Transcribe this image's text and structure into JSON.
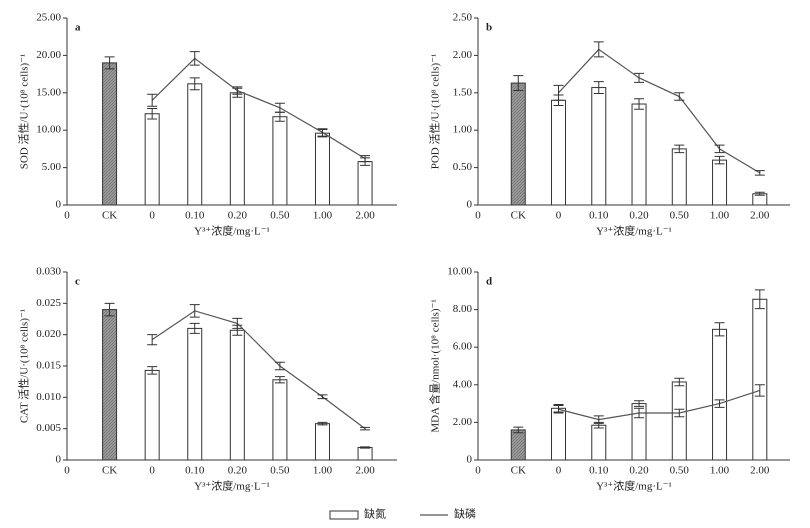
{
  "legend": [
    {
      "name": "缺氮",
      "kind": "bar",
      "color": "#ffffff"
    },
    {
      "name": "缺磷",
      "kind": "line",
      "color": "#555555"
    }
  ],
  "chart_data": [
    {
      "type": "bar",
      "title": "a",
      "xlabel": "Y³⁺浓度/mg·L⁻¹",
      "ylabel": "SOD 活性/U·(10⁸ cells)⁻¹",
      "categories": [
        "0",
        "CK",
        "0",
        "0.10",
        "0.20",
        "0.50",
        "1.00",
        "2.00"
      ],
      "ylim": [
        0,
        25
      ],
      "yticks": [
        0,
        {
          "value": 5,
          "label": "5.00"
        },
        {
          "value": 10,
          "label": "10.00"
        },
        {
          "value": 15,
          "label": "15.00"
        },
        {
          "value": 20,
          "label": "20.00"
        },
        {
          "value": 25,
          "label": "25.00"
        }
      ],
      "series": [
        {
          "kind": "bar",
          "color": "#9a9a9a",
          "values": [
            null,
            19.0,
            null,
            null,
            null,
            null,
            null,
            null
          ],
          "errors": [
            null,
            0.8,
            null,
            null,
            null,
            null,
            null,
            null
          ]
        },
        {
          "kind": "bar",
          "color": "#ffffff",
          "values": [
            null,
            null,
            12.2,
            16.2,
            15.0,
            11.8,
            9.6,
            5.8
          ],
          "errors": [
            null,
            null,
            0.7,
            0.8,
            0.6,
            0.6,
            0.5,
            0.5
          ]
        },
        {
          "kind": "line",
          "color": "#555555",
          "values": [
            null,
            null,
            14.0,
            19.6,
            15.3,
            13.0,
            9.7,
            6.2
          ],
          "errors": [
            null,
            null,
            0.8,
            0.9,
            0.5,
            0.6,
            0.5,
            0.4
          ]
        }
      ]
    },
    {
      "type": "bar",
      "title": "b",
      "xlabel": "Y³⁺浓度/mg·L⁻¹",
      "ylabel": "POD 活性/U·(10⁸ cells)⁻¹",
      "categories": [
        "0",
        "CK",
        "0",
        "0.10",
        "0.20",
        "0.50",
        "1.00",
        "2.00"
      ],
      "ylim": [
        0,
        2.5
      ],
      "yticks": [
        0,
        {
          "value": 0.5,
          "label": "0.50"
        },
        {
          "value": 1,
          "label": "1.00"
        },
        {
          "value": 1.5,
          "label": "1.50"
        },
        {
          "value": 2,
          "label": "2.00"
        },
        {
          "value": 2.5,
          "label": "2.50"
        }
      ],
      "series": [
        {
          "kind": "bar",
          "color": "#9a9a9a",
          "values": [
            null,
            1.63,
            null,
            null,
            null,
            null,
            null,
            null
          ],
          "errors": [
            null,
            0.1,
            null,
            null,
            null,
            null,
            null,
            null
          ]
        },
        {
          "kind": "bar",
          "color": "#ffffff",
          "values": [
            null,
            null,
            1.4,
            1.57,
            1.35,
            0.75,
            0.6,
            0.15
          ],
          "errors": [
            null,
            null,
            0.07,
            0.08,
            0.07,
            0.05,
            0.05,
            0.02
          ]
        },
        {
          "kind": "line",
          "color": "#555555",
          "values": [
            null,
            null,
            1.5,
            2.08,
            1.7,
            1.45,
            0.75,
            0.43
          ],
          "errors": [
            null,
            null,
            0.1,
            0.1,
            0.06,
            0.05,
            0.05,
            0.03
          ]
        }
      ]
    },
    {
      "type": "bar",
      "title": "c",
      "xlabel": "Y³⁺浓度/mg·L⁻¹",
      "ylabel": "CAT 活性/U·(10⁸ cells)⁻¹",
      "categories": [
        "0",
        "CK",
        "0",
        "0.10",
        "0.20",
        "0.50",
        "1.00",
        "2.00"
      ],
      "ylim": [
        0,
        0.03
      ],
      "yticks": [
        0,
        {
          "value": 0.005,
          "label": "0.005"
        },
        {
          "value": 0.01,
          "label": "0.010"
        },
        {
          "value": 0.015,
          "label": "0.015"
        },
        {
          "value": 0.02,
          "label": "0.020"
        },
        {
          "value": 0.025,
          "label": "0.025"
        },
        {
          "value": 0.03,
          "label": "0.030"
        }
      ],
      "series": [
        {
          "kind": "bar",
          "color": "#9a9a9a",
          "values": [
            null,
            0.024,
            null,
            null,
            null,
            null,
            null,
            null
          ],
          "errors": [
            null,
            0.001,
            null,
            null,
            null,
            null,
            null,
            null
          ]
        },
        {
          "kind": "bar",
          "color": "#ffffff",
          "values": [
            null,
            null,
            0.0143,
            0.021,
            0.0207,
            0.0128,
            0.0058,
            0.002
          ],
          "errors": [
            null,
            null,
            0.0006,
            0.0008,
            0.0008,
            0.0005,
            0.0002,
            0.0001
          ]
        },
        {
          "kind": "line",
          "color": "#555555",
          "values": [
            null,
            null,
            0.0192,
            0.0238,
            0.0218,
            0.015,
            0.0101,
            0.005
          ],
          "errors": [
            null,
            null,
            0.0008,
            0.001,
            0.0008,
            0.0006,
            0.0003,
            0.0002
          ]
        }
      ]
    },
    {
      "type": "bar",
      "title": "d",
      "xlabel": "Y³⁺浓度/mg·L⁻¹",
      "ylabel": "MDA 含量/nmol·(10⁸ cells)⁻¹",
      "categories": [
        "0",
        "CK",
        "0",
        "0.10",
        "0.20",
        "0.50",
        "1.00",
        "2.00"
      ],
      "ylim": [
        0,
        10
      ],
      "yticks": [
        0,
        {
          "value": 2,
          "label": "2.00"
        },
        {
          "value": 4,
          "label": "4.00"
        },
        {
          "value": 6,
          "label": "6.00"
        },
        {
          "value": 8,
          "label": "8.00"
        },
        {
          "value": 10,
          "label": "10.00"
        }
      ],
      "series": [
        {
          "kind": "bar",
          "color": "#9a9a9a",
          "values": [
            null,
            1.6,
            null,
            null,
            null,
            null,
            null,
            null
          ],
          "errors": [
            null,
            0.15,
            null,
            null,
            null,
            null,
            null,
            null
          ]
        },
        {
          "kind": "bar",
          "color": "#ffffff",
          "values": [
            null,
            null,
            2.75,
            1.85,
            3.0,
            4.15,
            6.95,
            8.55
          ],
          "errors": [
            null,
            null,
            0.2,
            0.15,
            0.15,
            0.2,
            0.35,
            0.5
          ]
        },
        {
          "kind": "line",
          "color": "#555555",
          "values": [
            null,
            null,
            2.7,
            2.15,
            2.5,
            2.5,
            3.0,
            3.7
          ],
          "errors": [
            null,
            null,
            0.2,
            0.2,
            0.25,
            0.2,
            0.2,
            0.3
          ]
        }
      ]
    }
  ]
}
